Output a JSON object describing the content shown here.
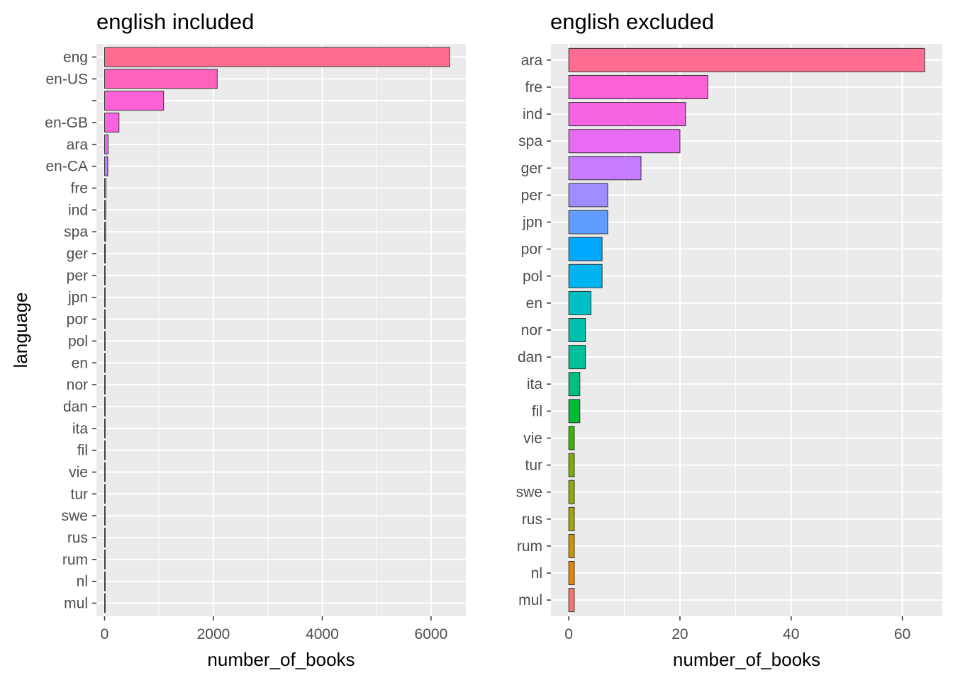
{
  "chart_data": [
    {
      "type": "bar",
      "orientation": "horizontal",
      "title": "english included",
      "xlabel": "number_of_books",
      "ylabel": "language",
      "xlim": [
        -150,
        6640
      ],
      "xticks": [
        0,
        2000,
        4000,
        6000
      ],
      "grid": true,
      "legend": "none",
      "categories": [
        "eng",
        "en-US",
        "",
        "en-GB",
        "ara",
        "en-CA",
        "fre",
        "ind",
        "spa",
        "ger",
        "per",
        "jpn",
        "por",
        "pol",
        "en",
        "nor",
        "dan",
        "ita",
        "fil",
        "vie",
        "tur",
        "swe",
        "rus",
        "rum",
        "nl",
        "mul"
      ],
      "values": [
        6341,
        2070,
        1084,
        264,
        64,
        58,
        25,
        21,
        20,
        13,
        7,
        7,
        6,
        6,
        4,
        3,
        3,
        2,
        2,
        1,
        1,
        1,
        1,
        1,
        1,
        1
      ],
      "colors": [
        "#ff6c91",
        "#ff62bc",
        "#fc61d5",
        "#f763e0",
        "#e76bf3",
        "#b983ff",
        "#a58aff",
        "#8f91ff",
        "#6c9cff",
        "#44a5ff",
        "#00a9ff",
        "#00b4ef",
        "#00bae0",
        "#00bdd0",
        "#00bfc4",
        "#00c0b0",
        "#00c19a",
        "#00bf7d",
        "#00be67",
        "#00bc56",
        "#39b600",
        "#72b000",
        "#93aa00",
        "#aba300",
        "#c09b00",
        "#f8766d"
      ]
    },
    {
      "type": "bar",
      "orientation": "horizontal",
      "title": "english excluded",
      "xlabel": "number_of_books",
      "ylabel": "",
      "xlim": [
        -3.2,
        67.2
      ],
      "xticks": [
        0,
        20,
        40,
        60
      ],
      "grid": true,
      "legend": "none",
      "categories": [
        "ara",
        "fre",
        "ind",
        "spa",
        "ger",
        "per",
        "jpn",
        "por",
        "pol",
        "en",
        "nor",
        "dan",
        "ita",
        "fil",
        "vie",
        "tur",
        "swe",
        "rus",
        "rum",
        "nl",
        "mul"
      ],
      "values": [
        64,
        25,
        21,
        20,
        13,
        7,
        7,
        6,
        6,
        4,
        3,
        3,
        2,
        2,
        1,
        1,
        1,
        1,
        1,
        1,
        1
      ],
      "colors": [
        "#ff6c91",
        "#fc61d5",
        "#f564e3",
        "#e76bf3",
        "#c77cff",
        "#9f8cff",
        "#619cff",
        "#00a9ff",
        "#00b4ef",
        "#00bfc4",
        "#00c0b0",
        "#00c19a",
        "#00bf7d",
        "#00ba38",
        "#39b600",
        "#7cae00",
        "#93aa00",
        "#a3a500",
        "#cd9600",
        "#e58700",
        "#f8766d"
      ]
    }
  ]
}
